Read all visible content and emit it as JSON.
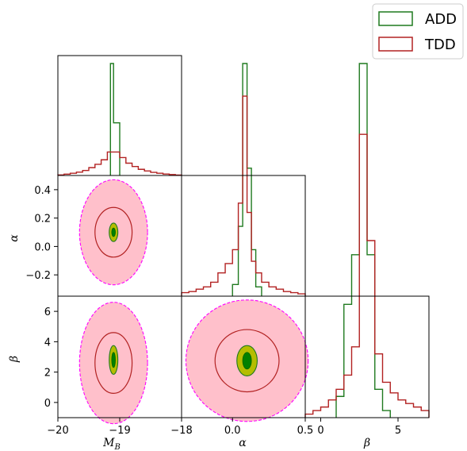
{
  "chart_data": {
    "type": "corner",
    "parameters": [
      {
        "key": "MB",
        "label": "M",
        "label_sub": "B",
        "range": [
          -20,
          -18
        ],
        "ticks": [
          {
            "v": -20,
            "t": "−20"
          },
          {
            "v": -19,
            "t": "−19"
          },
          {
            "v": -18,
            "t": "−18"
          }
        ]
      },
      {
        "key": "alpha",
        "label": "α",
        "range": [
          -0.35,
          0.5
        ],
        "ticks": [
          {
            "v": -0.2,
            "t": "−0.2"
          },
          {
            "v": 0.0,
            "t": "0.0"
          },
          {
            "v": 0.2,
            "t": "0.2"
          },
          {
            "v": 0.4,
            "t": "0.4"
          }
        ],
        "xticks": [
          {
            "v": 0.0,
            "t": "0.0"
          },
          {
            "v": 0.5,
            "t": "0.5"
          }
        ]
      },
      {
        "key": "beta",
        "label": "β",
        "range": [
          -1,
          7
        ],
        "ticks": [
          {
            "v": 0,
            "t": "0"
          },
          {
            "v": 2,
            "t": "2"
          },
          {
            "v": 4,
            "t": "4"
          },
          {
            "v": 6,
            "t": "6"
          }
        ],
        "xticks": [
          {
            "v": 0,
            "t": "0"
          },
          {
            "v": 5,
            "t": "5"
          }
        ]
      }
    ],
    "legend": {
      "placement": "top-right",
      "entries": [
        {
          "name": "ADD",
          "color": "#1f7a1f"
        },
        {
          "name": "TDD",
          "color": "#b22222"
        }
      ]
    },
    "series": [
      {
        "name": "ADD",
        "color": "#1f7a1f",
        "hist": {
          "MB": {
            "bins": [
              -19.15,
              -19.1,
              -19.05,
              -19.0
            ],
            "values": [
              1.0,
              0.47,
              0.47
            ]
          },
          "alpha": {
            "bins": [
              0.0,
              0.04,
              0.07,
              0.1,
              0.13,
              0.16,
              0.2
            ],
            "values": [
              0.05,
              0.3,
              1.0,
              0.55,
              0.2,
              0.04
            ]
          },
          "beta": {
            "bins": [
              1.0,
              1.5,
              2.0,
              2.5,
              3.0,
              3.5,
              4.0,
              4.5
            ],
            "values": [
              0.06,
              0.32,
              0.46,
              1.0,
              0.46,
              0.08,
              0.02
            ]
          }
        },
        "contours": [
          {
            "pair": [
              "MB",
              "alpha"
            ],
            "center": [
              -19.1,
              0.1
            ],
            "inner": [
              0.03,
              0.03
            ],
            "outer": [
              0.07,
              0.065
            ]
          },
          {
            "pair": [
              "MB",
              "beta"
            ],
            "center": [
              -19.1,
              2.8
            ],
            "inner": [
              0.03,
              0.5
            ],
            "outer": [
              0.07,
              0.95
            ]
          },
          {
            "pair": [
              "alpha",
              "beta"
            ],
            "center": [
              0.1,
              2.75
            ],
            "inner": [
              0.03,
              0.55
            ],
            "outer": [
              0.07,
              1.0
            ]
          }
        ]
      },
      {
        "name": "TDD",
        "color": "#b22222",
        "hist": {
          "MB": {
            "bins": [
              -20.0,
              -19.9,
              -19.8,
              -19.7,
              -19.6,
              -19.5,
              -19.4,
              -19.3,
              -19.2,
              -19.1,
              -19.0,
              -18.9,
              -18.8,
              -18.7,
              -18.6,
              -18.5,
              -18.4,
              -18.3,
              -18.2,
              -18.1,
              -18.0
            ],
            "values": [
              0.005,
              0.012,
              0.02,
              0.03,
              0.045,
              0.07,
              0.1,
              0.14,
              0.21,
              0.21,
              0.16,
              0.11,
              0.08,
              0.055,
              0.04,
              0.028,
              0.02,
              0.013,
              0.008,
              0.004
            ]
          },
          "alpha": {
            "bins": [
              -0.35,
              -0.3,
              -0.25,
              -0.2,
              -0.15,
              -0.1,
              -0.05,
              0.0,
              0.04,
              0.07,
              0.1,
              0.13,
              0.16,
              0.2,
              0.25,
              0.3,
              0.35,
              0.4,
              0.45,
              0.5
            ],
            "values": [
              0.015,
              0.02,
              0.03,
              0.04,
              0.06,
              0.1,
              0.14,
              0.2,
              0.4,
              0.86,
              0.36,
              0.15,
              0.1,
              0.06,
              0.04,
              0.03,
              0.02,
              0.015,
              0.01
            ]
          },
          "beta": {
            "bins": [
              -1.0,
              -0.5,
              0.0,
              0.5,
              1.0,
              1.5,
              2.0,
              2.5,
              3.0,
              3.5,
              4.0,
              4.5,
              5.0,
              5.5,
              6.0,
              6.5,
              7.0
            ],
            "values": [
              0.01,
              0.02,
              0.03,
              0.05,
              0.08,
              0.12,
              0.2,
              0.8,
              0.5,
              0.18,
              0.1,
              0.07,
              0.05,
              0.04,
              0.03,
              0.02
            ]
          }
        },
        "contours": [
          {
            "pair": [
              "MB",
              "alpha"
            ],
            "center": [
              -19.1,
              0.1
            ],
            "inner": [
              0.3,
              0.175
            ],
            "outer": [
              0.55,
              0.37
            ]
          },
          {
            "pair": [
              "MB",
              "beta"
            ],
            "center": [
              -19.1,
              2.6
            ],
            "inner": [
              0.3,
              2.0
            ],
            "outer": [
              0.55,
              4.0
            ]
          },
          {
            "pair": [
              "alpha",
              "beta"
            ],
            "center": [
              0.1,
              2.75
            ],
            "inner": [
              0.22,
              2.05
            ],
            "outer": [
              0.42,
              4.0
            ]
          }
        ]
      }
    ]
  }
}
